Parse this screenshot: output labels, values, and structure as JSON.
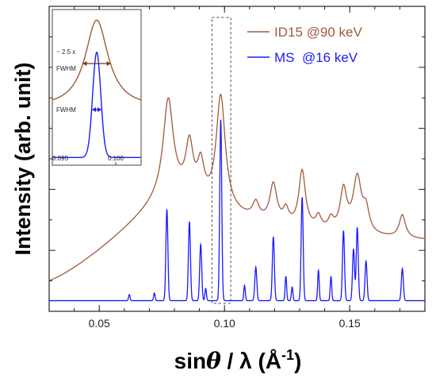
{
  "chart_data": {
    "type": "line",
    "title": "",
    "xlabel": "sinθ / λ (Å⁻¹)",
    "xlabel_parts": {
      "main": "sin",
      "theta": "θ",
      "sep": " / λ (Å",
      "sup": "-1",
      "close": ")"
    },
    "ylabel": "Intensity (arb. unit)",
    "xlim": [
      0.03,
      0.18
    ],
    "ylim": [
      0,
      10
    ],
    "x_ticks": [
      0.05,
      0.1,
      0.15
    ],
    "x_tick_labels": [
      "0.05",
      "0.10",
      "0.15"
    ],
    "y_ticks_unlabeled": true,
    "grid": false,
    "legend_position": "top-right",
    "series": [
      {
        "name": "ID15 @90 keV",
        "color": "#a05a3c",
        "peaks": [
          {
            "x": 0.0775,
            "h": 2.9,
            "w": 0.0024
          },
          {
            "x": 0.086,
            "h": 1.65,
            "w": 0.0018
          },
          {
            "x": 0.0905,
            "h": 1.1,
            "w": 0.0016
          },
          {
            "x": 0.0985,
            "h": 3.7,
            "w": 0.0022
          },
          {
            "x": 0.1125,
            "h": 0.5,
            "w": 0.0015
          },
          {
            "x": 0.1195,
            "h": 1.25,
            "w": 0.0017
          },
          {
            "x": 0.1245,
            "h": 0.45,
            "w": 0.0013
          },
          {
            "x": 0.131,
            "h": 1.85,
            "w": 0.0016
          },
          {
            "x": 0.1375,
            "h": 0.4,
            "w": 0.0013
          },
          {
            "x": 0.1425,
            "h": 0.35,
            "w": 0.0013
          },
          {
            "x": 0.1475,
            "h": 1.35,
            "w": 0.0016
          },
          {
            "x": 0.153,
            "h": 1.8,
            "w": 0.002
          },
          {
            "x": 0.1565,
            "h": 0.7,
            "w": 0.0015
          },
          {
            "x": 0.171,
            "h": 0.75,
            "w": 0.0015
          }
        ]
      },
      {
        "name": "MS  @16 keV",
        "color": "#1a1aff",
        "peaks": [
          {
            "x": 0.062,
            "h": 0.2,
            "w": 0.0003
          },
          {
            "x": 0.072,
            "h": 0.25,
            "w": 0.0003
          },
          {
            "x": 0.077,
            "h": 3.0,
            "w": 0.0004
          },
          {
            "x": 0.086,
            "h": 2.6,
            "w": 0.0004
          },
          {
            "x": 0.0905,
            "h": 1.85,
            "w": 0.0004
          },
          {
            "x": 0.0925,
            "h": 0.4,
            "w": 0.0003
          },
          {
            "x": 0.0985,
            "h": 5.95,
            "w": 0.0004
          },
          {
            "x": 0.108,
            "h": 0.5,
            "w": 0.0003
          },
          {
            "x": 0.1125,
            "h": 1.1,
            "w": 0.0004
          },
          {
            "x": 0.1195,
            "h": 2.1,
            "w": 0.0004
          },
          {
            "x": 0.1245,
            "h": 0.8,
            "w": 0.0003
          },
          {
            "x": 0.127,
            "h": 0.45,
            "w": 0.0003
          },
          {
            "x": 0.131,
            "h": 3.4,
            "w": 0.0004
          },
          {
            "x": 0.1375,
            "h": 1.0,
            "w": 0.0003
          },
          {
            "x": 0.1425,
            "h": 0.8,
            "w": 0.0003
          },
          {
            "x": 0.1475,
            "h": 2.3,
            "w": 0.0004
          },
          {
            "x": 0.1515,
            "h": 1.7,
            "w": 0.0004
          },
          {
            "x": 0.153,
            "h": 2.4,
            "w": 0.0004
          },
          {
            "x": 0.1565,
            "h": 1.3,
            "w": 0.0004
          },
          {
            "x": 0.171,
            "h": 1.05,
            "w": 0.0004
          }
        ]
      }
    ],
    "highlight_box_xrange": [
      0.095,
      0.1025
    ],
    "inset": {
      "xlim": [
        0.095,
        0.102
      ],
      "x_tick_labels": [
        "0.095",
        "0.100"
      ],
      "x_ticks": [
        0.095,
        0.1
      ],
      "annotation_top": "~ 2.5 x",
      "annotation_top_label": "FWHM",
      "annotation_bottom_label": "FWHM"
    }
  }
}
